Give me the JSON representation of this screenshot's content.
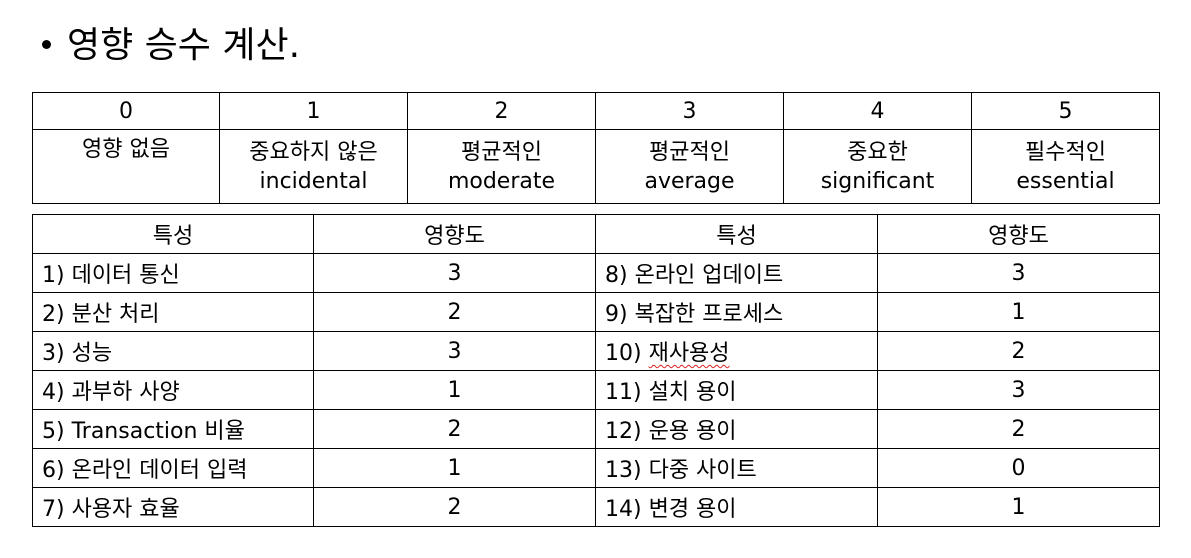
{
  "title": "영향 승수 계산.",
  "scale": [
    {
      "level": "0",
      "korean": "영향 없음",
      "english": ""
    },
    {
      "level": "1",
      "korean": "중요하지 않은",
      "english": "incidental"
    },
    {
      "level": "2",
      "korean": "평균적인",
      "english": "moderate"
    },
    {
      "level": "3",
      "korean": "평균적인",
      "english": "average"
    },
    {
      "level": "4",
      "korean": "중요한",
      "english": "significant"
    },
    {
      "level": "5",
      "korean": "필수적인",
      "english": "essential"
    }
  ],
  "factor_table": {
    "headers": [
      "특성",
      "영향도",
      "특성",
      "영향도"
    ],
    "rows": [
      {
        "left_name": "1) 데이터 통신",
        "left_value": "3",
        "right_prefix": "8) ",
        "right_word": "온라인 업데이트",
        "right_value": "3"
      },
      {
        "left_name": "2) 분산 처리",
        "left_value": "2",
        "right_prefix": "9) ",
        "right_word": "복잡한 프로세스",
        "right_value": "1"
      },
      {
        "left_name": "3) 성능",
        "left_value": "3",
        "right_prefix": "10) ",
        "right_word": "재사용성",
        "right_value": "2"
      },
      {
        "left_name": "4) 과부하 사양",
        "left_value": "1",
        "right_prefix": "11) ",
        "right_word": "설치 용이",
        "right_value": "3"
      },
      {
        "left_name": "5) Transaction 비율",
        "left_value": "2",
        "right_prefix": "12) ",
        "right_word": "운용 용이",
        "right_value": "2"
      },
      {
        "left_name": "6) 온라인 데이터 입력",
        "left_value": "1",
        "right_prefix": "13) ",
        "right_word": "다중 사이트",
        "right_value": "0"
      },
      {
        "left_name": "7) 사용자 효율",
        "left_value": "2",
        "right_prefix": "14) ",
        "right_word": "변경 용이",
        "right_value": "1"
      }
    ]
  }
}
